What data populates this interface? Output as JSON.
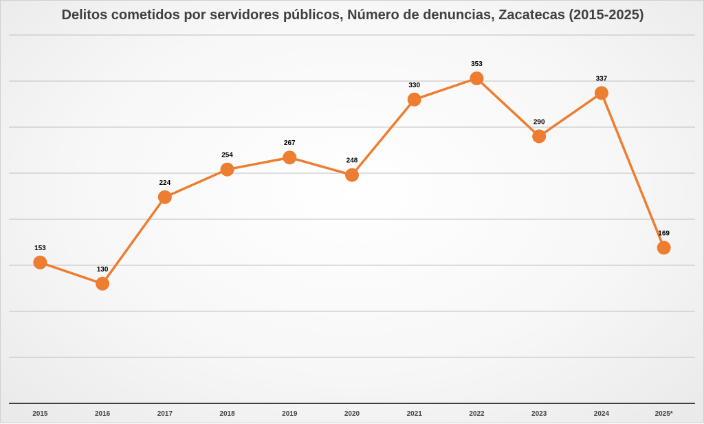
{
  "chart_data": {
    "type": "line",
    "title": "Delitos cometidos por servidores públicos, Número de denuncias, Zacatecas (2015-2025)",
    "xlabel": "",
    "ylabel": "",
    "categories": [
      "2015",
      "2016",
      "2017",
      "2018",
      "2019",
      "2020",
      "2021",
      "2022",
      "2023",
      "2024",
      "2025*"
    ],
    "values": [
      153,
      130,
      224,
      254,
      267,
      248,
      330,
      353,
      290,
      337,
      169
    ],
    "data_labels": [
      "153",
      "130",
      "224",
      "254",
      "267",
      "248",
      "330",
      "353",
      "290",
      "337",
      "169"
    ],
    "ylim": [
      0,
      400
    ],
    "grid": true,
    "legend": "none",
    "colors": {
      "line": "#ed7d31",
      "marker": "#ed7d31",
      "grid": "#bfbfbf",
      "axis": "#404040"
    }
  }
}
